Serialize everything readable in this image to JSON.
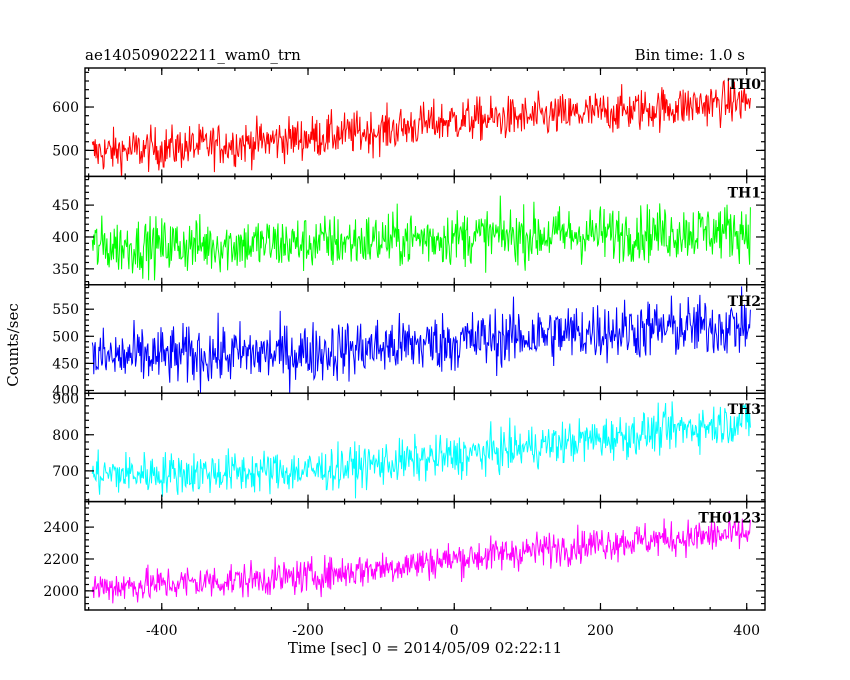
{
  "header": {
    "title": "ae140509022211_wam0_trn",
    "bin_time": "Bin time: 1.0 s"
  },
  "chart_data": {
    "type": "line",
    "xlabel": "Time [sec] 0 = 2014/05/09 02:22:11",
    "ylabel": "Counts/sec",
    "xlim": [
      -505,
      425
    ],
    "xticks": [
      -400,
      -200,
      0,
      200,
      400
    ],
    "series": [
      {
        "name": "TH0",
        "color": "#ff0000",
        "ylim": [
          440,
          690
        ],
        "yticks": [
          500,
          600
        ],
        "trend_x": [
          -495,
          -300,
          -100,
          0,
          100,
          300,
          405
        ],
        "trend_y": [
          495,
          515,
          545,
          570,
          575,
          600,
          615
        ],
        "noise": 25
      },
      {
        "name": "TH1",
        "color": "#00ff00",
        "ylim": [
          325,
          495
        ],
        "yticks": [
          350,
          400,
          450
        ],
        "trend_x": [
          -495,
          -200,
          0,
          200,
          405
        ],
        "trend_y": [
          385,
          390,
          400,
          405,
          410
        ],
        "noise": 22
      },
      {
        "name": "TH2",
        "color": "#0000ff",
        "ylim": [
          395,
          595
        ],
        "yticks": [
          400,
          450,
          500,
          550
        ],
        "trend_x": [
          -495,
          -200,
          0,
          200,
          405
        ],
        "trend_y": [
          460,
          470,
          490,
          510,
          520
        ],
        "noise": 28
      },
      {
        "name": "TH3",
        "color": "#00ffff",
        "ylim": [
          615,
          915
        ],
        "yticks": [
          700,
          800,
          900
        ],
        "trend_x": [
          -495,
          -200,
          0,
          200,
          405
        ],
        "trend_y": [
          690,
          700,
          740,
          790,
          840
        ],
        "noise": 30
      },
      {
        "name": "TH0123",
        "color": "#ff00ff",
        "ylim": [
          1880,
          2560
        ],
        "yticks": [
          2000,
          2200,
          2400
        ],
        "trend_x": [
          -495,
          -200,
          0,
          200,
          405
        ],
        "trend_y": [
          2020,
          2090,
          2200,
          2300,
          2360
        ],
        "noise": 55
      }
    ]
  }
}
